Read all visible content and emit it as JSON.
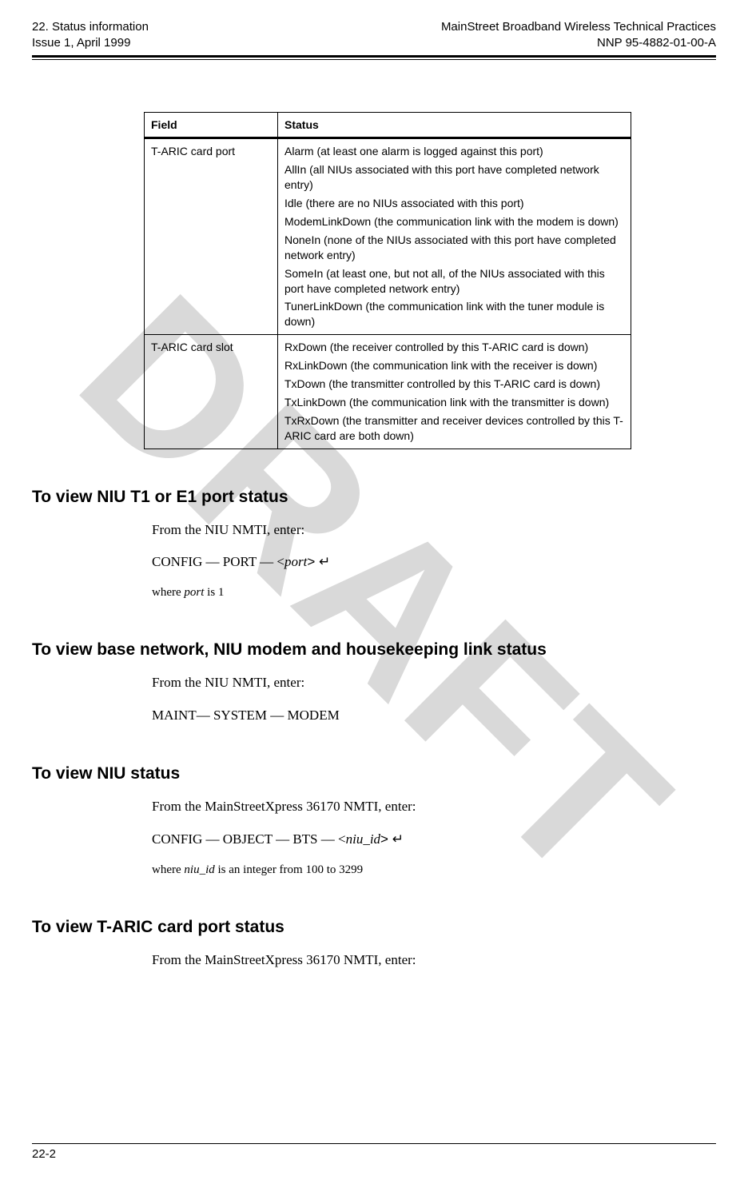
{
  "header": {
    "left_line1": "22. Status information",
    "left_line2": "Issue 1, April 1999",
    "right_line1": "MainStreet Broadband Wireless Technical Practices",
    "right_line2": "NNP 95-4882-01-00-A"
  },
  "watermark_text": "DRAFT",
  "table": {
    "col1_header": "Field",
    "col2_header": "Status",
    "rows": [
      {
        "field": "T-ARIC card port",
        "statuses": [
          "Alarm (at least one alarm is logged against this port)",
          "AllIn (all NIUs associated with this port have completed network entry)",
          "Idle (there are no NIUs associated with this port)",
          "ModemLinkDown (the communication link with the modem is down)",
          "NoneIn (none of the NIUs associated with this port have completed network entry)",
          "SomeIn (at least one, but not all, of the NIUs associated with this port have completed network entry)",
          "TunerLinkDown (the communication link with the tuner module is down)"
        ]
      },
      {
        "field": "T-ARIC card slot",
        "statuses": [
          "RxDown (the receiver controlled by this T-ARIC card is down)",
          "RxLinkDown (the communication link with the receiver is down)",
          "TxDown (the transmitter controlled by this T-ARIC card is down)",
          "TxLinkDown (the communication link with the transmitter is down)",
          "TxRxDown (the transmitter and receiver devices controlled by this T-ARIC card are both down)"
        ]
      }
    ]
  },
  "sections": {
    "s1": {
      "heading": "To view NIU T1 or E1 port status",
      "intro": "From the NIU NMTI, enter:",
      "cmd_pre": "CONFIG — PORT — <",
      "cmd_param": "port",
      "cmd_post": "> ↵",
      "where_pre": "where ",
      "where_param": "port",
      "where_post": " is 1"
    },
    "s2": {
      "heading": "To view base network, NIU modem and housekeeping link status",
      "intro": "From the NIU NMTI, enter:",
      "cmd": "MAINT— SYSTEM — MODEM"
    },
    "s3": {
      "heading": "To view NIU status",
      "intro": "From the MainStreetXpress 36170 NMTI, enter:",
      "cmd_pre": "CONFIG — OBJECT — BTS — <",
      "cmd_param": "niu_id",
      "cmd_post": "> ↵",
      "where_pre": "where ",
      "where_param": "niu_id",
      "where_post": " is an integer from 100 to 3299"
    },
    "s4": {
      "heading": "To view T-ARIC card port status",
      "intro": "From the MainStreetXpress 36170 NMTI, enter:"
    }
  },
  "footer": {
    "page_number": "22-2"
  }
}
